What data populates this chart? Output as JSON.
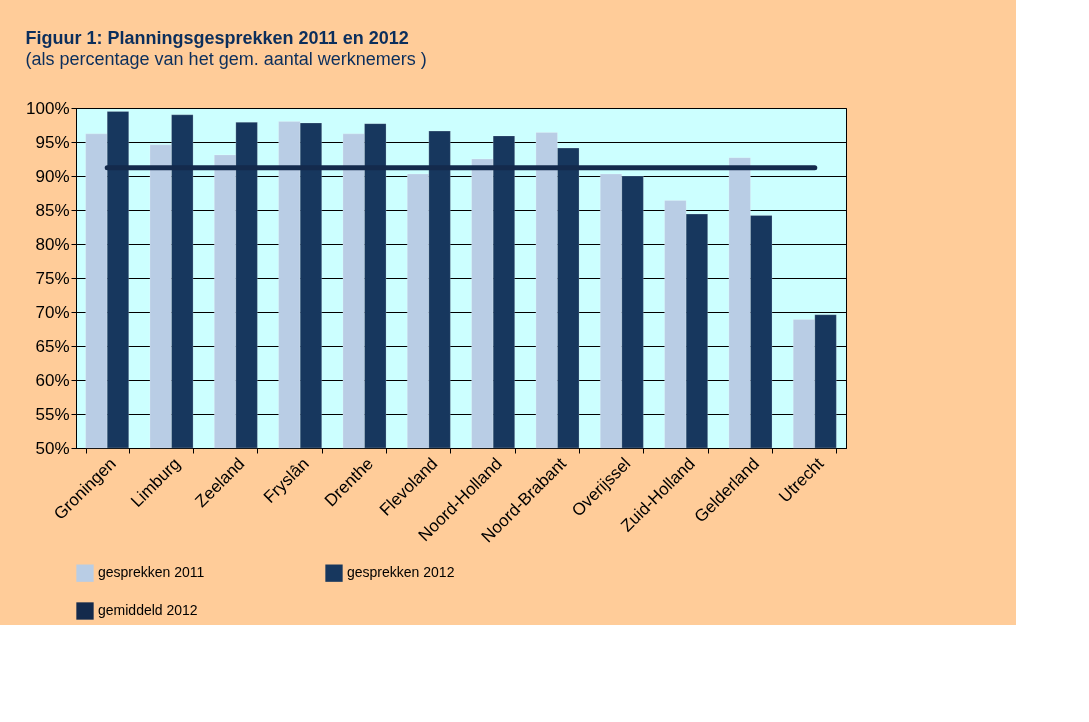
{
  "chart_data": {
    "type": "bar",
    "title": "Figuur 1:  Planningsgesprekken 2011 en 2012",
    "subtitle": "(als percentage van het gem. aantal werknemers )",
    "categories": [
      "Groningen",
      "Limburg",
      "Zeeland",
      "Fryslân",
      "Drenthe",
      "Flevoland",
      "Noord-Holland",
      "Noord-Brabant",
      "Overijssel",
      "Zuid-Holland",
      "Gelderland",
      "Utrecht"
    ],
    "series": [
      {
        "name": "gesprekken 2011",
        "color": "#b9cde5",
        "values": [
          96.2,
          94.6,
          93.1,
          98.0,
          96.2,
          90.3,
          92.5,
          96.4,
          90.3,
          86.4,
          92.7,
          68.9
        ]
      },
      {
        "name": "gesprekken 2012",
        "color": "#17375e",
        "values": [
          99.5,
          99.0,
          97.9,
          97.8,
          97.7,
          96.6,
          95.9,
          94.1,
          90.0,
          84.4,
          84.2,
          69.6
        ]
      },
      {
        "name": "gemiddeld 2012",
        "type": "line",
        "color": "#142a4c",
        "values": [
          91.2,
          91.2,
          91.2,
          91.2,
          91.2,
          91.2,
          91.2,
          91.2,
          91.2,
          91.2,
          91.2,
          91.2
        ]
      }
    ],
    "ylim": [
      50,
      100
    ],
    "yticks": [
      {
        "value": 50,
        "label": "50%"
      },
      {
        "value": 55,
        "label": "55%"
      },
      {
        "value": 60,
        "label": "60%"
      },
      {
        "value": 65,
        "label": "65%"
      },
      {
        "value": 70,
        "label": "70%"
      },
      {
        "value": 75,
        "label": "75%"
      },
      {
        "value": 80,
        "label": "80%"
      },
      {
        "value": 85,
        "label": "85%"
      },
      {
        "value": 90,
        "label": "90%"
      },
      {
        "value": 95,
        "label": "95%"
      },
      {
        "value": 100,
        "label": "100%"
      }
    ],
    "grid": "y",
    "legend": "bottom"
  }
}
